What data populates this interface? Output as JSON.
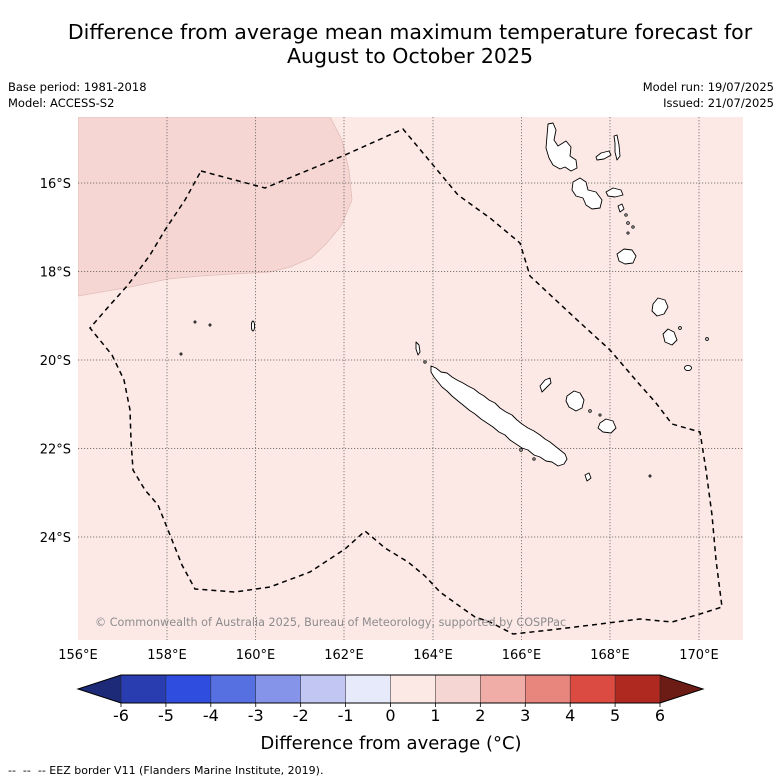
{
  "title": {
    "line1": "Difference from average mean maximum temperature forecast for",
    "line2": "August to October 2025"
  },
  "meta": {
    "base_period": "Base period: 1981-2018",
    "model": "Model: ACCESS-S2",
    "model_run": "Model run: 19/07/2025",
    "issued": "Issued: 21/07/2025"
  },
  "map": {
    "lon_labels": [
      "156°E",
      "158°E",
      "160°E",
      "162°E",
      "164°E",
      "166°E",
      "168°E",
      "170°E"
    ],
    "lat_labels": [
      "16°S",
      "18°S",
      "20°S",
      "22°S",
      "24°S"
    ],
    "fill_ranges": [
      [
        0,
        1
      ],
      [
        1,
        2
      ]
    ],
    "copyright": "© Commonwealth of Australia 2025, Bureau of Meteorology, supported by COSPPac"
  },
  "colorbar": {
    "tick_labels": [
      "-6",
      "-5",
      "-4",
      "-3",
      "-2",
      "-1",
      "0",
      "1",
      "2",
      "3",
      "4",
      "5",
      "6"
    ],
    "label": "Difference from average (°C)",
    "extend_low_color": "#1c2a78",
    "bin_colors": [
      "#2a3db0",
      "#2f4ee0",
      "#5670e2",
      "#8593e8",
      "#c1c6f3",
      "#e7eafb",
      "#fce9e6",
      "#f5d6d2",
      "#f0aca6",
      "#e8867e",
      "#dc4b41",
      "#af2920"
    ],
    "extend_high_color": "#6c1b15"
  },
  "footer": {
    "eez_note": "--  --  -- EEZ border V11 (Flanders Marine Institute, 2019)."
  }
}
